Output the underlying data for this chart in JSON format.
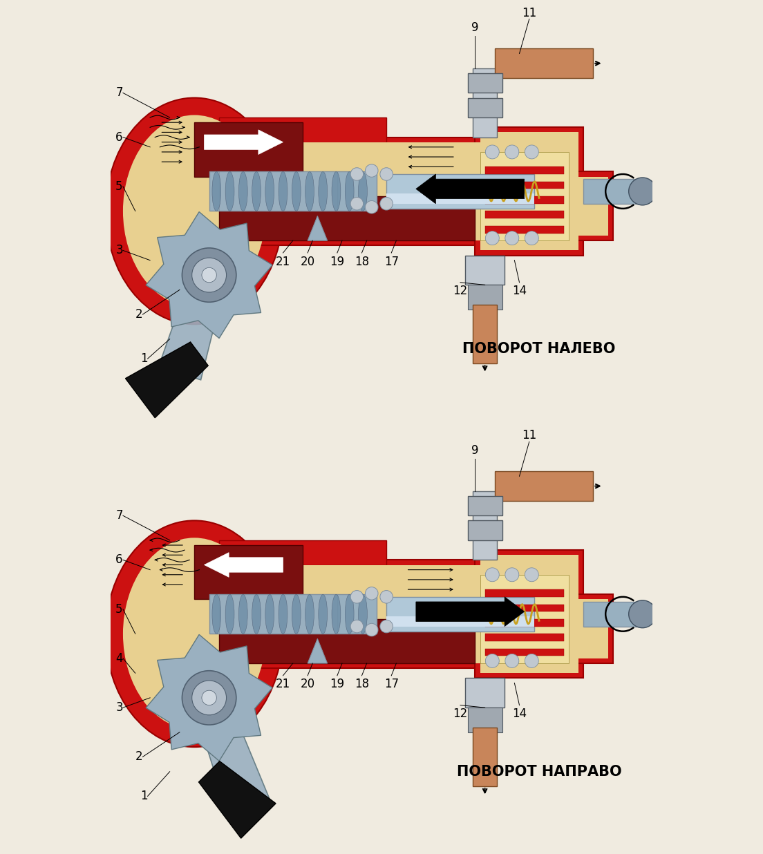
{
  "background_color": "#f0ebe0",
  "top_label": "ПОВОРОТ НАЛЕВО",
  "bottom_label": "ПОВОРОТ НАПРАВО",
  "red": "#cc1111",
  "dark_red": "#7a0f0f",
  "fill": "#e8d090",
  "fill_light": "#f0dfa0",
  "steel": "#b0c8d8",
  "steel_dark": "#8090a0",
  "steel_mid": "#98b0c0",
  "copper": "#c8855a",
  "gold": "#c8a020",
  "silver": "#c0c8d0",
  "label_fs": 15,
  "num_fs": 12,
  "figsize": [
    11.04,
    12.36
  ],
  "dpi": 100
}
